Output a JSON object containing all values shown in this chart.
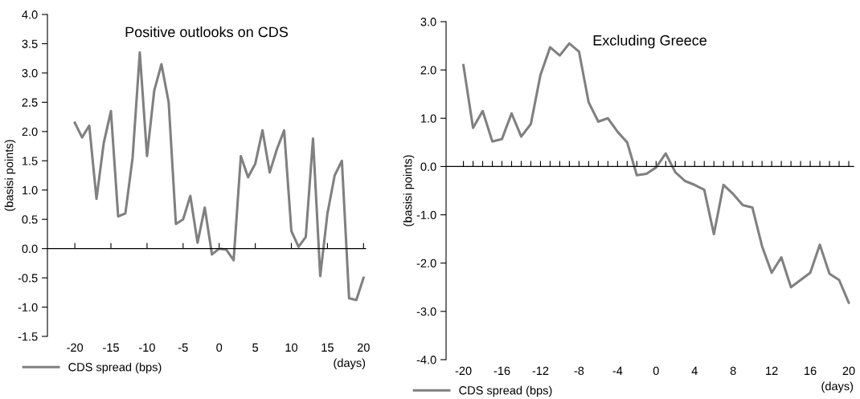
{
  "chart_data": [
    {
      "type": "line",
      "title": "Positive outlooks on CDS",
      "ylabel": "(basisi points)",
      "xlabel": "(days)",
      "legend": "bottom left",
      "marker": "none",
      "line_style": "solid",
      "x": [
        -20,
        -19,
        -18,
        -17,
        -16,
        -15,
        -14,
        -13,
        -12,
        -11,
        -10,
        -9,
        -8,
        -7,
        -6,
        -5,
        -4,
        -3,
        -2,
        -1,
        0,
        1,
        2,
        3,
        4,
        5,
        6,
        7,
        8,
        9,
        10,
        11,
        12,
        13,
        14,
        15,
        16,
        17,
        18,
        19,
        20
      ],
      "series": [
        {
          "name": "CDS spread (bps)",
          "color": "#808080",
          "values": [
            2.15,
            1.9,
            2.1,
            0.85,
            1.8,
            2.35,
            0.55,
            0.6,
            1.55,
            3.35,
            1.58,
            2.7,
            3.15,
            2.5,
            0.42,
            0.5,
            0.9,
            0.1,
            0.7,
            -0.1,
            0.0,
            -0.02,
            -0.2,
            1.58,
            1.22,
            1.45,
            2.02,
            1.3,
            1.7,
            2.02,
            0.3,
            0.03,
            0.2,
            1.88,
            -0.47,
            0.6,
            1.25,
            1.5,
            -0.85,
            -0.88,
            -0.5
          ]
        }
      ],
      "xlim": [
        -23.8,
        20.3
      ],
      "xticks": [
        -20,
        -15,
        -10,
        -5,
        0,
        5,
        10,
        15,
        20
      ],
      "ylim": [
        -1.5,
        4.0
      ],
      "yticks": [
        {
          "value": -1.5,
          "label": "-1.5"
        },
        {
          "value": -1.0,
          "label": "-1.0"
        },
        {
          "value": -0.5,
          "label": "-0.5"
        },
        {
          "value": 0.0,
          "label": "0.0"
        },
        {
          "value": 0.5,
          "label": "0.5"
        },
        {
          "value": 1.0,
          "label": "1.0"
        },
        {
          "value": 1.5,
          "label": "1.5"
        },
        {
          "value": 2.0,
          "label": "2.0"
        },
        {
          "value": 2.5,
          "label": "2.5"
        },
        {
          "value": 3.0,
          "label": "3.0"
        },
        {
          "value": 3.5,
          "label": "3.5"
        },
        {
          "value": 4.0,
          "label": "4.0"
        }
      ]
    },
    {
      "type": "line",
      "title": "Excluding Greece",
      "ylabel": "(basisi points)",
      "xlabel": "(days)",
      "legend": "bottom left",
      "marker": "none",
      "line_style": "solid",
      "x": [
        -20,
        -19,
        -18,
        -17,
        -16,
        -15,
        -14,
        -13,
        -12,
        -11,
        -10,
        -9,
        -8,
        -7,
        -6,
        -5,
        -4,
        -3,
        -2,
        -1,
        0,
        1,
        2,
        3,
        4,
        5,
        6,
        7,
        8,
        9,
        10,
        11,
        12,
        13,
        14,
        15,
        16,
        17,
        18,
        19,
        20
      ],
      "series": [
        {
          "name": "CDS spread (bps)",
          "color": "#808080",
          "values": [
            2.1,
            0.8,
            1.15,
            0.52,
            0.57,
            1.1,
            0.62,
            0.88,
            1.9,
            2.47,
            2.3,
            2.55,
            2.38,
            1.33,
            0.93,
            1.0,
            0.72,
            0.5,
            -0.18,
            -0.15,
            -0.02,
            0.27,
            -0.12,
            -0.3,
            -0.38,
            -0.48,
            -1.4,
            -0.38,
            -0.57,
            -0.8,
            -0.85,
            -1.65,
            -2.2,
            -1.88,
            -2.5,
            -2.35,
            -2.2,
            -1.62,
            -2.22,
            -2.35,
            -2.82
          ]
        }
      ],
      "xlim": [
        -21.8,
        20.5
      ],
      "xticks": [
        -20,
        {
          "value": -19,
          "label": null
        },
        {
          "value": -18,
          "label": null
        },
        {
          "value": -17,
          "label": null
        },
        -16,
        {
          "value": -15,
          "label": null
        },
        {
          "value": -14,
          "label": null
        },
        {
          "value": -13,
          "label": null
        },
        -12,
        {
          "value": -11,
          "label": null
        },
        {
          "value": -10,
          "label": null
        },
        {
          "value": -9,
          "label": null
        },
        -8,
        {
          "value": -7,
          "label": null
        },
        {
          "value": -6,
          "label": null
        },
        {
          "value": -5,
          "label": null
        },
        -4,
        {
          "value": -3,
          "label": null
        },
        {
          "value": -2,
          "label": null
        },
        {
          "value": -1,
          "label": null
        },
        0,
        {
          "value": 1,
          "label": null
        },
        {
          "value": 2,
          "label": null
        },
        {
          "value": 3,
          "label": null
        },
        4,
        {
          "value": 5,
          "label": null
        },
        {
          "value": 6,
          "label": null
        },
        {
          "value": 7,
          "label": null
        },
        8,
        {
          "value": 9,
          "label": null
        },
        {
          "value": 10,
          "label": null
        },
        {
          "value": 11,
          "label": null
        },
        12,
        {
          "value": 13,
          "label": null
        },
        {
          "value": 14,
          "label": null
        },
        {
          "value": 15,
          "label": null
        },
        16,
        {
          "value": 17,
          "label": null
        },
        {
          "value": 18,
          "label": null
        },
        {
          "value": 19,
          "label": null
        },
        20
      ],
      "ylim": [
        -4.0,
        3.0
      ],
      "yticks": [
        {
          "value": -4.0,
          "label": "-4.0"
        },
        {
          "value": -3.0,
          "label": "-3.0"
        },
        {
          "value": -2.0,
          "label": "-2.0"
        },
        {
          "value": -1.0,
          "label": "-1.0"
        },
        {
          "value": 0.0,
          "label": "0.0"
        },
        {
          "value": 1.0,
          "label": "1.0"
        },
        {
          "value": 2.0,
          "label": "2.0"
        },
        {
          "value": 3.0,
          "label": "3.0"
        }
      ]
    }
  ]
}
